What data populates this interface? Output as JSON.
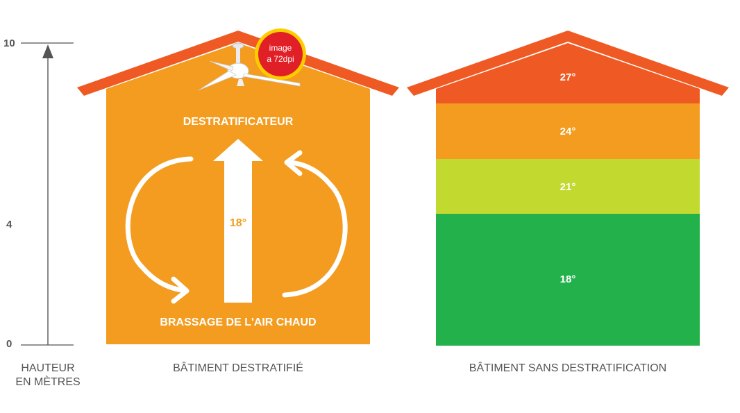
{
  "axis": {
    "ticks": [
      {
        "value": 10,
        "label": "10"
      },
      {
        "value": 4,
        "label": "4"
      },
      {
        "value": 0,
        "label": "0"
      }
    ],
    "label_line1": "HAUTEUR",
    "label_line2": "EN MÈTRES"
  },
  "left_building": {
    "caption": "BÂTIMENT DESTRATIFIÉ",
    "top_label": "DESTRATIFICATEUR",
    "temperature": "18°",
    "bottom_label": "BRASSAGE DE L'AIR CHAUD",
    "badge_line1": "image",
    "badge_line2": "a 72dpi",
    "color": "#f39c1f",
    "roof_color": "#ef5a24"
  },
  "right_building": {
    "caption": "BÂTIMENT SANS DESTRATIFICATION",
    "zones": [
      {
        "label": "27°",
        "color": "#ef5a24"
      },
      {
        "label": "24°",
        "color": "#f39c1f"
      },
      {
        "label": "21°",
        "color": "#c2d92f"
      },
      {
        "label": "18°",
        "color": "#23b14b"
      }
    ],
    "roof_color": "#ef5a24"
  }
}
